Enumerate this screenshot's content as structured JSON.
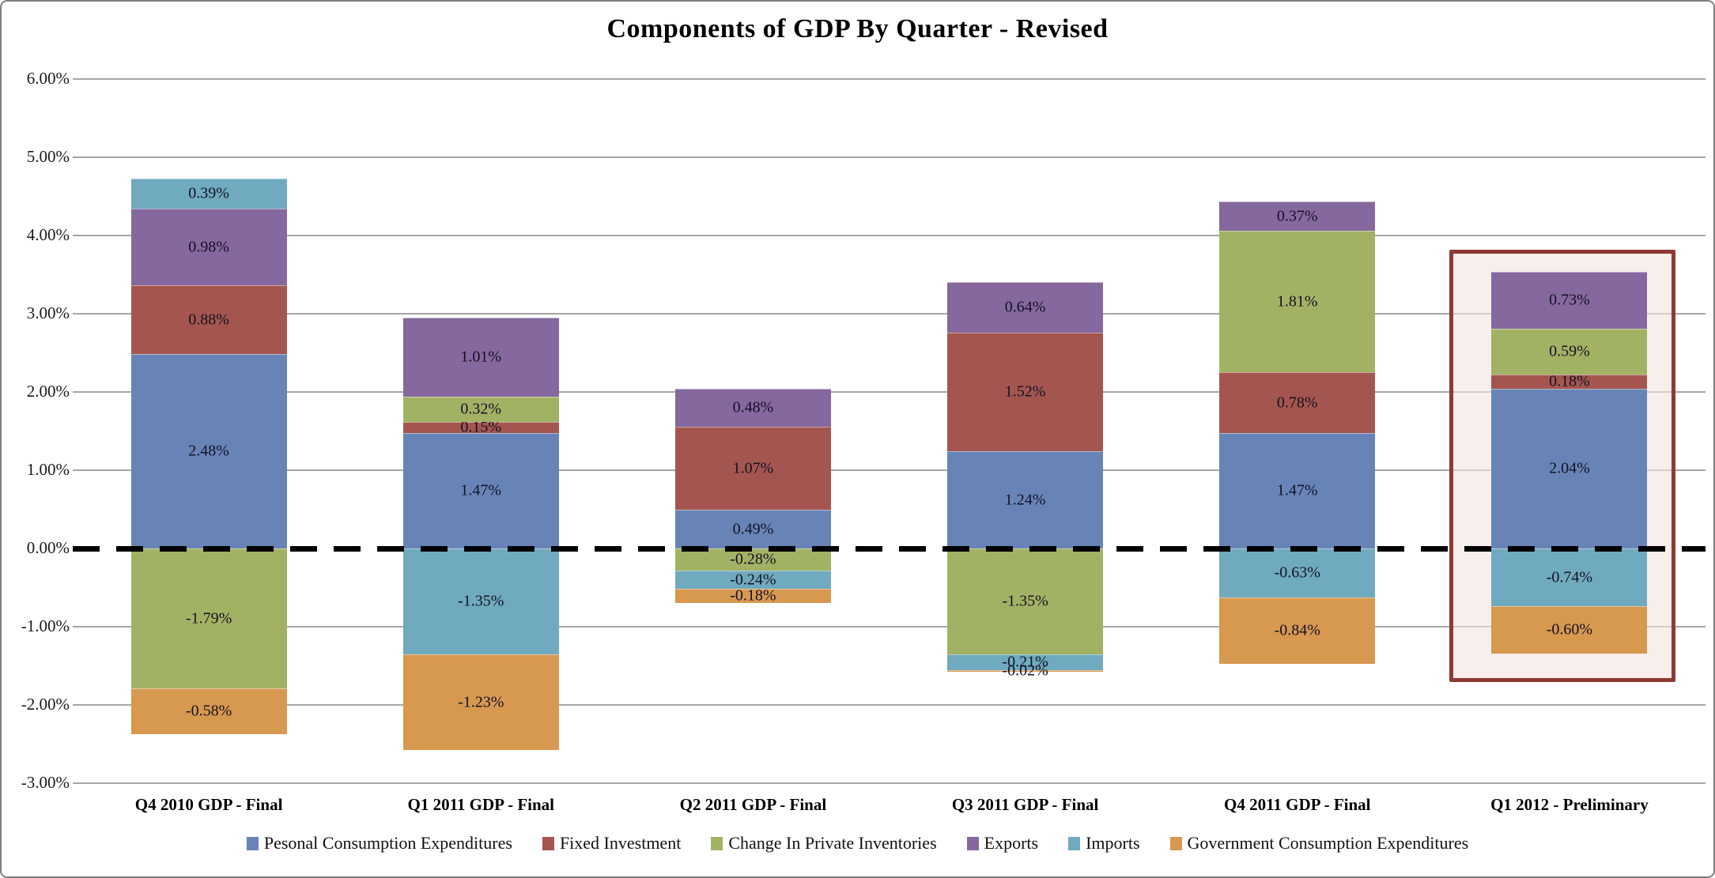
{
  "chart_data": {
    "type": "bar",
    "stacked": true,
    "title": "Components of GDP By Quarter - Revised",
    "categories": [
      "Q4 2010 GDP - Final",
      "Q1 2011 GDP - Final",
      "Q2 2011 GDP - Final",
      "Q3 2011 GDP - Final",
      "Q4 2011 GDP - Final",
      "Q1 2012 - Preliminary"
    ],
    "series": [
      {
        "name": "Pesonal Consumption Expenditures",
        "color": "#6884B6",
        "values": [
          2.48,
          1.47,
          0.49,
          1.24,
          1.47,
          2.04
        ]
      },
      {
        "name": "Fixed Investment",
        "color": "#A5554F",
        "values": [
          0.88,
          0.15,
          1.07,
          1.52,
          0.78,
          0.18
        ]
      },
      {
        "name": "Change In Private Inventories",
        "color": "#A2B264",
        "values": [
          -1.79,
          0.32,
          -0.28,
          -1.35,
          1.81,
          0.59
        ]
      },
      {
        "name": "Exports",
        "color": "#85689E",
        "values": [
          0.98,
          1.01,
          0.48,
          0.64,
          0.37,
          0.73
        ]
      },
      {
        "name": "Imports",
        "color": "#6FAABE",
        "values": [
          0.39,
          -1.35,
          -0.24,
          -0.21,
          -0.63,
          -0.74
        ]
      },
      {
        "name": "Government Consumption Expenditures",
        "color": "#D79850",
        "values": [
          -0.58,
          -1.23,
          -0.18,
          -0.02,
          -0.84,
          -0.6
        ]
      }
    ],
    "y_ticks": [
      {
        "label": "6.00%",
        "value": 6
      },
      {
        "label": "5.00%",
        "value": 5
      },
      {
        "label": "4.00%",
        "value": 4
      },
      {
        "label": "3.00%",
        "value": 3
      },
      {
        "label": "2.00%",
        "value": 2
      },
      {
        "label": "1.00%",
        "value": 1
      },
      {
        "label": "0.00%",
        "value": 0
      },
      {
        "label": "-1.00%",
        "value": -1
      },
      {
        "label": "-2.00%",
        "value": -2
      },
      {
        "label": "-3.00%",
        "value": -3
      }
    ],
    "ylim": [
      -3,
      6
    ],
    "grid": true,
    "gridline_color": "#A6A6A6",
    "legend_position": "bottom",
    "zero_line": {
      "style": "dashed",
      "color": "#000000"
    },
    "data_label_format": "0.00%",
    "highlight": {
      "category": "Q1 2012 - Preliminary",
      "category_index": 5,
      "border_color": "#8E3A33",
      "fill_color": "rgba(243,227,223,0.6)"
    }
  }
}
